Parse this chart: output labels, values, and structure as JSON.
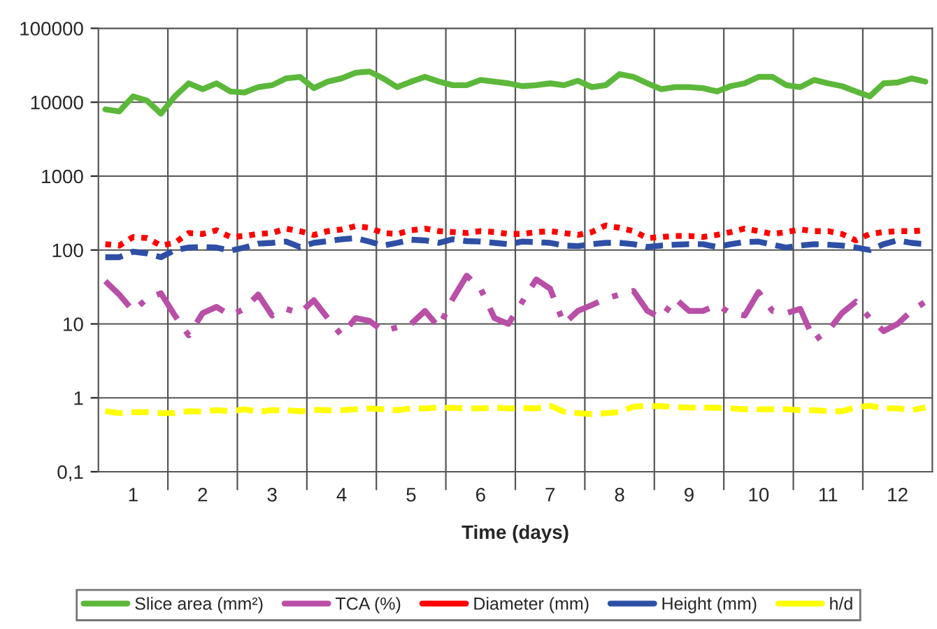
{
  "chart_data": {
    "type": "line",
    "xlabel": "Time (days)",
    "categories": [
      null,
      null,
      "1",
      null,
      null,
      null,
      null,
      "2",
      null,
      null,
      null,
      null,
      "3",
      null,
      null,
      null,
      null,
      "4",
      null,
      null,
      null,
      null,
      "5",
      null,
      null,
      null,
      null,
      "6",
      null,
      null,
      null,
      null,
      "7",
      null,
      null,
      null,
      null,
      "8",
      null,
      null,
      null,
      null,
      "9",
      null,
      null,
      null,
      null,
      "10",
      null,
      null,
      null,
      null,
      "11",
      null,
      null,
      null,
      null,
      "12",
      null,
      null
    ],
    "series": [
      {
        "name": "Slice area (mm²)",
        "color": "#5cb83a",
        "line_style": "solid",
        "values": [
          8000,
          7500,
          12000,
          10500,
          7000,
          12000,
          18000,
          15000,
          18000,
          14000,
          13500,
          16000,
          17000,
          21000,
          22000,
          15500,
          19000,
          21000,
          25000,
          26000,
          21000,
          16000,
          19000,
          22000,
          19000,
          17000,
          17000,
          20000,
          19000,
          18000,
          16500,
          17000,
          18000,
          17000,
          19500,
          16000,
          17000,
          24000,
          22000,
          18000,
          15000,
          16000,
          16000,
          15500,
          14000,
          16500,
          18000,
          22000,
          22000,
          17000,
          16000,
          20000,
          18000,
          16500,
          14000,
          12000,
          18000,
          18500,
          21000,
          19000
        ]
      },
      {
        "name": "TCA (%)",
        "color": "#b94fa6",
        "line_style": "dashdot",
        "values": [
          38,
          25,
          15,
          22,
          26,
          13,
          7,
          14,
          17,
          13,
          16,
          25,
          13,
          16,
          14,
          21,
          12,
          7,
          12,
          11,
          8,
          9,
          10,
          15,
          9,
          22,
          45,
          30,
          12,
          10,
          20,
          40,
          30,
          10,
          15,
          18,
          22,
          25,
          28,
          15,
          12,
          22,
          15,
          15,
          18,
          14,
          13,
          27,
          15,
          14,
          16,
          6,
          8,
          14,
          20,
          12,
          8,
          10,
          15,
          20
        ]
      },
      {
        "name": "Diameter (mm)",
        "color": "#ff0000",
        "line_style": "dotted",
        "values": [
          120,
          115,
          150,
          145,
          115,
          125,
          170,
          165,
          185,
          150,
          155,
          165,
          170,
          195,
          180,
          160,
          180,
          190,
          210,
          200,
          170,
          165,
          185,
          195,
          180,
          175,
          170,
          180,
          175,
          165,
          165,
          175,
          180,
          170,
          160,
          175,
          215,
          200,
          180,
          145,
          150,
          155,
          155,
          150,
          160,
          175,
          195,
          180,
          165,
          175,
          190,
          180,
          180,
          165,
          135,
          165,
          175,
          180,
          180,
          185
        ]
      },
      {
        "name": "Height (mm)",
        "color": "#2e4fa5",
        "line_style": "dashed",
        "values": [
          80,
          80,
          95,
          90,
          80,
          100,
          108,
          110,
          108,
          98,
          108,
          122,
          125,
          130,
          110,
          125,
          132,
          140,
          145,
          130,
          115,
          125,
          138,
          135,
          125,
          140,
          132,
          130,
          125,
          120,
          130,
          128,
          125,
          115,
          113,
          120,
          125,
          125,
          120,
          110,
          115,
          118,
          120,
          120,
          110,
          120,
          128,
          130,
          118,
          108,
          115,
          120,
          118,
          115,
          108,
          100,
          120,
          135,
          125,
          120
        ]
      },
      {
        "name": "h/d",
        "color": "#ffff00",
        "line_style": "dashed",
        "values": [
          0.66,
          0.62,
          0.64,
          0.64,
          0.62,
          0.62,
          0.66,
          0.65,
          0.68,
          0.66,
          0.7,
          0.65,
          0.68,
          0.68,
          0.66,
          0.69,
          0.68,
          0.68,
          0.7,
          0.72,
          0.7,
          0.68,
          0.72,
          0.72,
          0.74,
          0.73,
          0.72,
          0.72,
          0.74,
          0.72,
          0.73,
          0.72,
          0.78,
          0.65,
          0.62,
          0.6,
          0.62,
          0.64,
          0.76,
          0.78,
          0.77,
          0.75,
          0.74,
          0.74,
          0.73,
          0.72,
          0.7,
          0.7,
          0.7,
          0.7,
          0.68,
          0.68,
          0.66,
          0.66,
          0.74,
          0.78,
          0.72,
          0.72,
          0.68,
          0.74
        ]
      }
    ],
    "log": true,
    "ylim": [
      0.1,
      100000
    ],
    "yticks": [
      {
        "value": 0.1,
        "label": "0,1"
      },
      1,
      10,
      100,
      1000,
      10000,
      100000
    ],
    "grid": true,
    "legend": "bottom",
    "marker": "none"
  }
}
